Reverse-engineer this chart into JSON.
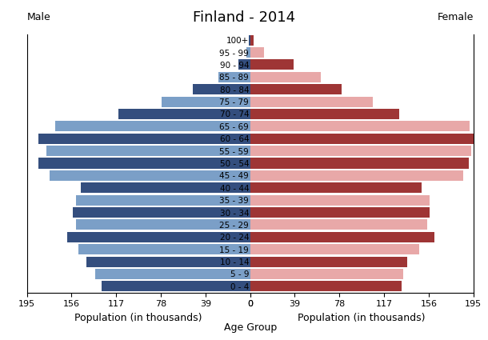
{
  "title": "Finland - 2014",
  "age_groups_bottom_to_top": [
    "0 - 4",
    "5 - 9",
    "10 - 14",
    "15 - 19",
    "20 - 24",
    "25 - 29",
    "30 - 34",
    "35 - 39",
    "40 - 44",
    "45 - 49",
    "50 - 54",
    "55 - 59",
    "60 - 64",
    "65 - 69",
    "70 - 74",
    "75 - 79",
    "80 - 84",
    "85 - 89",
    "90 - 94",
    "95 - 99",
    "100+"
  ],
  "male_bottom_to_top": [
    130,
    135,
    143,
    150,
    160,
    152,
    155,
    152,
    148,
    175,
    185,
    178,
    185,
    170,
    115,
    77,
    50,
    28,
    10,
    3,
    1
  ],
  "female_bottom_to_top": [
    132,
    134,
    137,
    148,
    161,
    155,
    157,
    157,
    150,
    186,
    191,
    193,
    195,
    192,
    130,
    107,
    80,
    62,
    38,
    12,
    3
  ],
  "male_colors_dark": "#344e7e",
  "male_colors_light": "#7b9fc7",
  "female_colors_dark": "#9e3535",
  "female_colors_light": "#e8a8a8",
  "xlabel_left": "Population (in thousands)",
  "xlabel_center": "Age Group",
  "xlabel_right": "Population (in thousands)",
  "label_male": "Male",
  "label_female": "Female",
  "xlim": 195,
  "xticks": [
    0,
    39,
    78,
    117,
    156,
    195
  ],
  "background_color": "#ffffff",
  "title_fontsize": 13,
  "label_fontsize": 9,
  "tick_fontsize": 8,
  "age_label_fontsize": 7.5
}
